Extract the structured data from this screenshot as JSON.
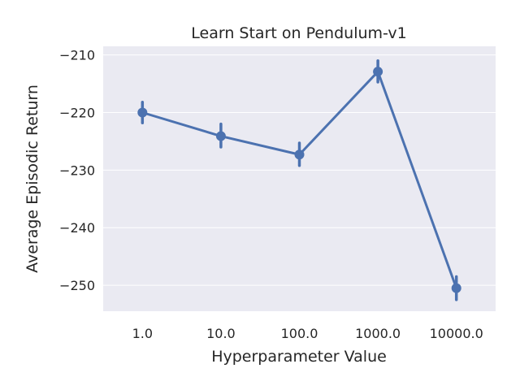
{
  "chart_data": {
    "type": "line",
    "title": "Learn Start on Pendulum-v1",
    "xlabel": "Hyperparameter Value",
    "ylabel": "Average Episodic Return",
    "categories": [
      "1.0",
      "10.0",
      "100.0",
      "1000.0",
      "10000.0"
    ],
    "series": [
      {
        "values": [
          -220.0,
          -224.1,
          -227.3,
          -212.9,
          -250.5
        ],
        "error_low": [
          -221.8,
          -226.0,
          -229.2,
          -214.7,
          -252.5
        ],
        "error_high": [
          -218.2,
          -222.0,
          -225.3,
          -211.0,
          -248.5
        ]
      }
    ],
    "ylim": [
      -254.5,
      -208.5
    ],
    "yticks": [
      -210,
      -220,
      -230,
      -240,
      -250
    ],
    "ytick_labels": [
      "−210",
      "−220",
      "−230",
      "−240",
      "−250"
    ],
    "grid": true,
    "colors": {
      "background": "#eaeaf2",
      "grid": "#ffffff",
      "series": "#4c72b0",
      "text": "#262626"
    }
  }
}
